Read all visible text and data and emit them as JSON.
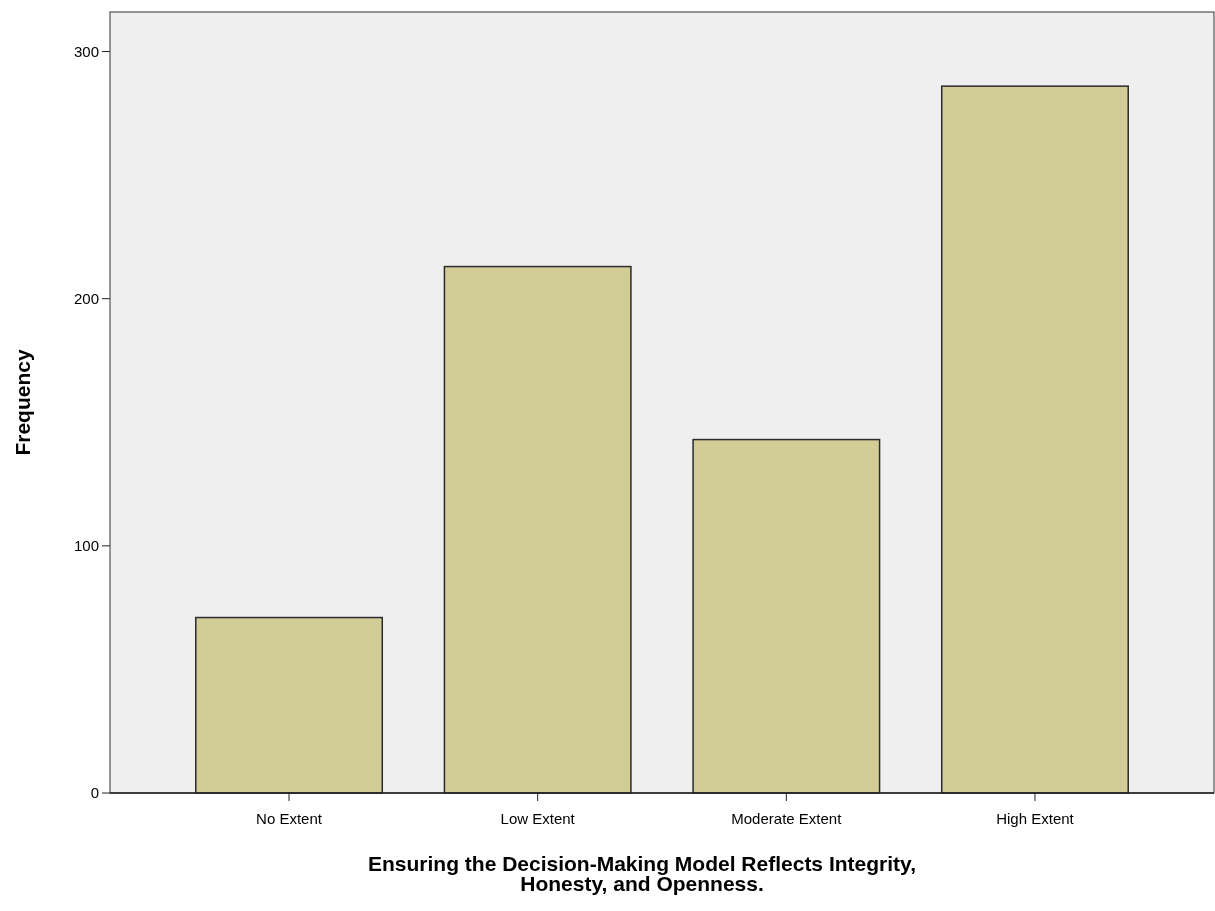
{
  "chart_data": {
    "type": "bar",
    "xlabel": "Ensuring the Decision-Making Model Reflects Integrity, Honesty, and Openness.",
    "ylabel": "Frequency",
    "categories": [
      "No Extent",
      "Low Extent",
      "Moderate Extent",
      "High Extent"
    ],
    "values": [
      71,
      213,
      143,
      286
    ],
    "color": "#d2cd97",
    "ylim": [
      0,
      316
    ],
    "yticks": [
      0,
      100,
      200,
      300
    ],
    "grid": false
  }
}
